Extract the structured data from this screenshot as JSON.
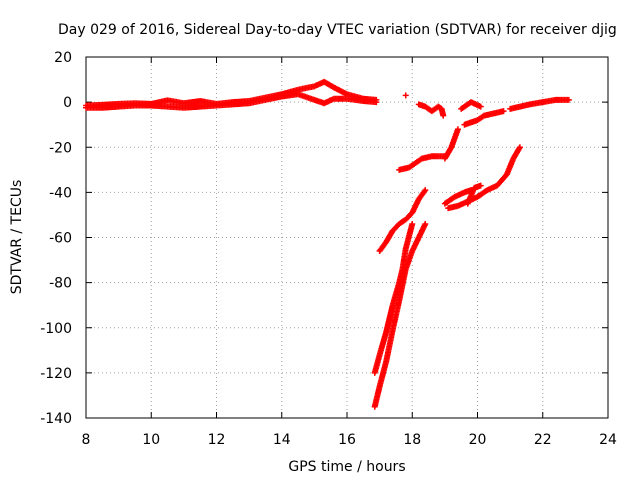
{
  "chart_data": {
    "type": "scatter",
    "title": "Day 029 of 2016, Sidereal Day-to-day VTEC variation (SDTVAR) for receiver djig",
    "xlabel": "GPS time / hours",
    "ylabel": "SDTVAR / TECUs",
    "xlim": [
      8,
      24
    ],
    "ylim": [
      -140,
      20
    ],
    "xticks": [
      8,
      10,
      12,
      14,
      16,
      18,
      20,
      22,
      24
    ],
    "yticks": [
      -140,
      -120,
      -100,
      -80,
      -60,
      -40,
      -20,
      0,
      20
    ],
    "grid": true,
    "marker": "+",
    "color": "#ff0000",
    "series": [
      {
        "segments": [
          [
            [
              8.0,
              -1.5
            ],
            [
              8.5,
              -1.2
            ],
            [
              9.0,
              -0.8
            ],
            [
              9.5,
              -0.5
            ],
            [
              10.0,
              -0.8
            ],
            [
              10.5,
              0.8
            ],
            [
              11.0,
              -0.5
            ],
            [
              11.5,
              0.5
            ],
            [
              12.0,
              -0.8
            ],
            [
              12.5,
              0.0
            ],
            [
              13.0,
              0.5
            ],
            [
              13.5,
              2.0
            ],
            [
              14.0,
              3.5
            ],
            [
              14.5,
              5.5
            ],
            [
              15.0,
              7.0
            ],
            [
              15.3,
              9.0
            ],
            [
              15.6,
              6.5
            ],
            [
              16.0,
              3.5
            ],
            [
              16.5,
              1.5
            ],
            [
              16.9,
              1.0
            ]
          ],
          [
            [
              8.0,
              -2.5
            ],
            [
              8.5,
              -2.5
            ],
            [
              9.0,
              -2.0
            ],
            [
              9.5,
              -1.5
            ],
            [
              10.0,
              -1.5
            ],
            [
              10.5,
              -2.0
            ],
            [
              11.0,
              -2.5
            ],
            [
              11.5,
              -2.0
            ],
            [
              12.0,
              -1.5
            ],
            [
              12.5,
              -1.0
            ],
            [
              13.0,
              -0.5
            ],
            [
              13.5,
              1.0
            ],
            [
              14.0,
              2.5
            ],
            [
              14.5,
              3.5
            ],
            [
              15.0,
              1.0
            ],
            [
              15.3,
              -0.5
            ],
            [
              15.6,
              1.5
            ],
            [
              16.0,
              1.5
            ],
            [
              16.5,
              0.5
            ],
            [
              16.9,
              0.0
            ]
          ],
          [
            [
              17.0,
              -66
            ],
            [
              17.2,
              -62
            ],
            [
              17.4,
              -57
            ],
            [
              17.6,
              -54
            ],
            [
              17.8,
              -52
            ],
            [
              18.0,
              -49
            ],
            [
              18.2,
              -43
            ],
            [
              18.4,
              -39
            ]
          ],
          [
            [
              17.6,
              -30
            ],
            [
              17.9,
              -29
            ],
            [
              18.1,
              -27
            ],
            [
              18.3,
              -25
            ],
            [
              18.6,
              -24
            ],
            [
              19.0,
              -24
            ]
          ],
          [
            [
              16.85,
              -120
            ],
            [
              17.0,
              -112
            ],
            [
              17.2,
              -102
            ],
            [
              17.4,
              -90
            ],
            [
              17.6,
              -80
            ],
            [
              17.7,
              -74
            ],
            [
              17.8,
              -65
            ],
            [
              18.0,
              -54
            ]
          ],
          [
            [
              16.85,
              -135
            ],
            [
              17.0,
              -126
            ],
            [
              17.2,
              -115
            ],
            [
              17.4,
              -101
            ],
            [
              17.6,
              -88
            ],
            [
              17.8,
              -74
            ],
            [
              18.0,
              -66
            ],
            [
              18.2,
              -60
            ],
            [
              18.4,
              -54
            ]
          ],
          [
            [
              18.2,
              -1
            ],
            [
              18.4,
              -2
            ],
            [
              18.6,
              -4
            ],
            [
              18.8,
              -2
            ],
            [
              18.9,
              -3
            ],
            [
              18.95,
              -6
            ]
          ],
          [
            [
              19.0,
              -25
            ],
            [
              19.2,
              -20
            ],
            [
              19.4,
              -12
            ]
          ],
          [
            [
              19.0,
              -45
            ],
            [
              19.3,
              -42
            ],
            [
              19.6,
              -40
            ],
            [
              19.8,
              -39
            ]
          ],
          [
            [
              19.1,
              -47
            ],
            [
              19.4,
              -46
            ],
            [
              19.7,
              -44
            ],
            [
              20.0,
              -42
            ],
            [
              20.3,
              -39
            ],
            [
              20.6,
              -37
            ],
            [
              20.9,
              -32
            ],
            [
              21.1,
              -25
            ],
            [
              21.3,
              -20
            ]
          ],
          [
            [
              19.6,
              -10
            ],
            [
              19.8,
              -9
            ],
            [
              20.0,
              -8
            ],
            [
              20.2,
              -6
            ],
            [
              20.5,
              -5
            ],
            [
              20.8,
              -4
            ]
          ],
          [
            [
              19.7,
              -45
            ],
            [
              19.9,
              -38
            ],
            [
              20.1,
              -37
            ]
          ],
          [
            [
              21.0,
              -3
            ],
            [
              21.3,
              -2
            ],
            [
              21.6,
              -1
            ],
            [
              22.0,
              0
            ],
            [
              22.4,
              1
            ],
            [
              22.8,
              1
            ]
          ],
          [
            [
              19.5,
              -3
            ],
            [
              19.8,
              0
            ],
            [
              20.1,
              -2
            ]
          ]
        ],
        "points": [
          [
            17.8,
            3
          ]
        ]
      }
    ]
  }
}
